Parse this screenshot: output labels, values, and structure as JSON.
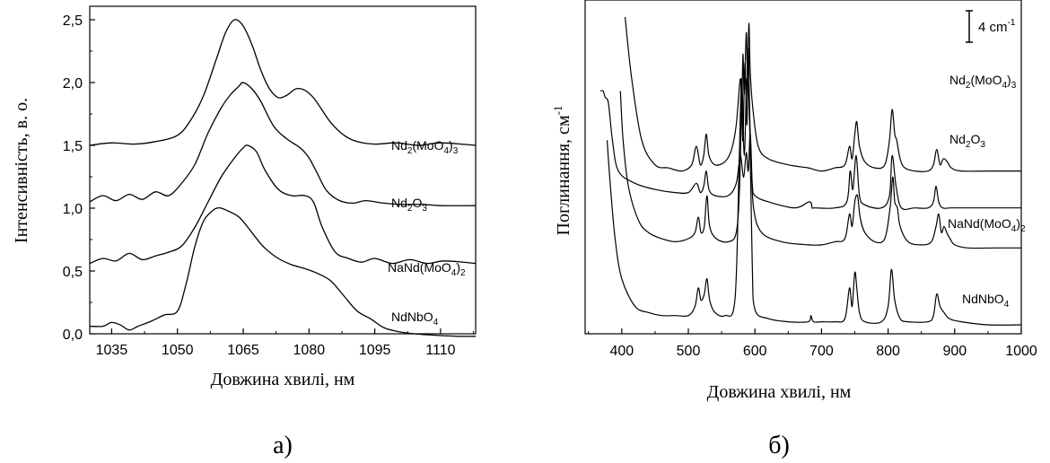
{
  "panels": [
    {
      "panel_label": "а)",
      "chart_data": {
        "type": "line",
        "xlabel": "Довжина хвилі, нм",
        "ylabel": "Інтенсивність, в. о.",
        "xlim": [
          1030,
          1118
        ],
        "ylim": [
          0,
          2.5
        ],
        "xticks": [
          1035,
          1050,
          1065,
          1080,
          1095,
          1110
        ],
        "xtick_labels": [
          "1035",
          "1050",
          "1065",
          "1080",
          "1095",
          "1110"
        ],
        "yticks": [
          0,
          0.5,
          1.0,
          1.5,
          2.0,
          2.5
        ],
        "ytick_labels": [
          "0,0",
          "0,5",
          "1,0",
          "1,5",
          "2,0",
          "2,5"
        ],
        "grid": false,
        "series": [
          {
            "name_parts": [
              {
                "t": "Nd"
              },
              {
                "t": "2",
                "sub": true
              },
              {
                "t": "(MoO"
              },
              {
                "t": "4",
                "sub": true
              },
              {
                "t": ")"
              },
              {
                "t": "3",
                "sub": true
              }
            ],
            "x": [
              1030,
              1035,
              1040,
              1045,
              1050,
              1053,
              1056,
              1059,
              1061,
              1063,
              1065,
              1067,
              1069,
              1071,
              1073,
              1075,
              1077,
              1079,
              1081,
              1083,
              1085,
              1088,
              1091,
              1095,
              1100,
              1105,
              1110,
              1118
            ],
            "y": [
              1.5,
              1.52,
              1.51,
              1.53,
              1.58,
              1.7,
              1.9,
              2.2,
              2.4,
              2.5,
              2.45,
              2.3,
              2.1,
              1.95,
              1.88,
              1.9,
              1.95,
              1.94,
              1.88,
              1.78,
              1.68,
              1.58,
              1.53,
              1.51,
              1.52,
              1.5,
              1.52,
              1.5
            ]
          },
          {
            "name_parts": [
              {
                "t": "Nd"
              },
              {
                "t": "2",
                "sub": true
              },
              {
                "t": "O"
              },
              {
                "t": "3",
                "sub": true
              }
            ],
            "x": [
              1030,
              1033,
              1036,
              1039,
              1042,
              1045,
              1048,
              1051,
              1054,
              1057,
              1060,
              1062,
              1064,
              1065,
              1067,
              1069,
              1072,
              1075,
              1078,
              1080,
              1082,
              1084,
              1087,
              1090,
              1093,
              1097,
              1101,
              1106,
              1110,
              1118
            ],
            "y": [
              1.05,
              1.1,
              1.06,
              1.11,
              1.07,
              1.13,
              1.1,
              1.2,
              1.35,
              1.6,
              1.8,
              1.9,
              1.97,
              2.0,
              1.95,
              1.85,
              1.65,
              1.55,
              1.48,
              1.4,
              1.27,
              1.14,
              1.06,
              1.04,
              1.06,
              1.04,
              1.03,
              1.03,
              1.02,
              1.02
            ]
          },
          {
            "name_parts": [
              {
                "t": "NaNd(MoO"
              },
              {
                "t": "4",
                "sub": true
              },
              {
                "t": ")"
              },
              {
                "t": "2",
                "sub": true
              }
            ],
            "x": [
              1030,
              1033,
              1036,
              1039,
              1042,
              1045,
              1048,
              1051,
              1054,
              1057,
              1060,
              1063,
              1065,
              1066,
              1068,
              1070,
              1073,
              1076,
              1079,
              1081,
              1083,
              1086,
              1089,
              1092,
              1095,
              1099,
              1103,
              1107,
              1111,
              1118
            ],
            "y": [
              0.56,
              0.6,
              0.58,
              0.64,
              0.59,
              0.62,
              0.65,
              0.7,
              0.85,
              1.05,
              1.25,
              1.4,
              1.48,
              1.5,
              1.45,
              1.3,
              1.15,
              1.1,
              1.1,
              1.05,
              0.85,
              0.65,
              0.6,
              0.57,
              0.6,
              0.56,
              0.59,
              0.56,
              0.58,
              0.56
            ]
          },
          {
            "name_parts": [
              {
                "t": "NdNbO"
              },
              {
                "t": "4",
                "sub": true
              }
            ],
            "x": [
              1030,
              1033,
              1035,
              1037,
              1039,
              1041,
              1044,
              1047,
              1050,
              1052,
              1054,
              1056,
              1058,
              1059,
              1060,
              1062,
              1064,
              1066,
              1068,
              1070,
              1073,
              1076,
              1079,
              1082,
              1085,
              1088,
              1091,
              1094,
              1097,
              1100,
              1104,
              1108,
              1114,
              1118
            ],
            "y": [
              0.06,
              0.06,
              0.09,
              0.07,
              0.03,
              0.06,
              0.1,
              0.15,
              0.18,
              0.4,
              0.7,
              0.9,
              0.98,
              1.0,
              1.0,
              0.97,
              0.93,
              0.85,
              0.76,
              0.68,
              0.6,
              0.55,
              0.52,
              0.48,
              0.42,
              0.3,
              0.18,
              0.12,
              0.05,
              0.02,
              0.0,
              -0.01,
              -0.02,
              -0.02
            ]
          }
        ]
      }
    },
    {
      "panel_label": "б)",
      "chart_data": {
        "type": "line",
        "xlabel": "Довжина хвилі, нм",
        "ylabel": "Поглинання, см",
        "ylabel_sup": "-1",
        "xlim": [
          345,
          1000
        ],
        "ylim": [
          0,
          105
        ],
        "xticks": [
          400,
          500,
          600,
          700,
          800,
          900,
          1000
        ],
        "xtick_labels": [
          "400",
          "500",
          "600",
          "700",
          "800",
          "900",
          "1000"
        ],
        "yticks": [],
        "grid": false,
        "scale_bar": {
          "label": "4 cm",
          "label_sup": "-1",
          "value": 8
        },
        "series": [
          {
            "name_parts": [
              {
                "t": "Nd"
              },
              {
                "t": "2",
                "sub": true
              },
              {
                "t": "(MoO"
              },
              {
                "t": "4",
                "sub": true
              },
              {
                "t": ")"
              },
              {
                "t": "3",
                "sub": true
              }
            ],
            "x": [
              405,
              415,
              430,
              450,
              470,
              490,
              505,
              512,
              518,
              523,
              527,
              531,
              540,
              555,
              565,
              572,
              578,
              580,
              582,
              584,
              587,
              589,
              591,
              593,
              597,
              605,
              620,
              650,
              680,
              700,
              720,
              735,
              742,
              746,
              750,
              753,
              757,
              765,
              780,
              795,
              802,
              806,
              810,
              813,
              818,
              825,
              840,
              860,
              868,
              873,
              878,
              883,
              889,
              895,
              910,
              950,
              1000
            ],
            "y": [
              100,
              80,
              60,
              52,
              51,
              50,
              52,
              58,
              52,
              55,
              62,
              55,
              52,
              53,
              57,
              65,
              80,
              70,
              88,
              75,
              95,
              80,
              98,
              82,
              70,
              58,
              54,
              52,
              51,
              50,
              51,
              52,
              58,
              54,
              62,
              66,
              58,
              53,
              51,
              52,
              60,
              70,
              62,
              60,
              54,
              51,
              50,
              50,
              52,
              57,
              52,
              54,
              53,
              51,
              50,
              50,
              50
            ]
          },
          {
            "name_parts": [
              {
                "t": "Nd"
              },
              {
                "t": "2",
                "sub": true
              },
              {
                "t": "O"
              },
              {
                "t": "3",
                "sub": true
              }
            ],
            "x": [
              368,
              372,
              375,
              380,
              386,
              395,
              420,
              450,
              480,
              500,
              512,
              518,
              523,
              527,
              531,
              540,
              560,
              572,
              578,
              583,
              587,
              590,
              593,
              596,
              600,
              620,
              660,
              682,
              686,
              690,
              720,
              738,
              743,
              747,
              752,
              757,
              765,
              790,
              802,
              806,
              812,
              820,
              840,
              860,
              868,
              872,
              876,
              882,
              895,
              930,
              1000
            ],
            "y": [
              76,
              76,
              74,
              72,
              60,
              50,
              46,
              44,
              43,
              43,
              46,
              43,
              45,
              50,
              44,
              42,
              42,
              46,
              55,
              48,
              56,
              50,
              62,
              46,
              42,
              40,
              38,
              40,
              38,
              38,
              38,
              40,
              50,
              44,
              55,
              42,
              39,
              38,
              42,
              55,
              45,
              38,
              38,
              38,
              40,
              45,
              40,
              38,
              38,
              38,
              38
            ]
          },
          {
            "name_parts": [
              {
                "t": "NaNd(MoO"
              },
              {
                "t": "4",
                "sub": true
              },
              {
                "t": ")"
              },
              {
                "t": "2",
                "sub": true
              }
            ],
            "x": [
              398,
              402,
              410,
              425,
              440,
              460,
              480,
              500,
              510,
              515,
              519,
              524,
              528,
              532,
              542,
              560,
              572,
              577,
              580,
              582,
              585,
              588,
              590,
              592,
              594,
              598,
              610,
              640,
              680,
              700,
              720,
              735,
              742,
              746,
              750,
              754,
              758,
              765,
              780,
              795,
              803,
              807,
              810,
              814,
              818,
              830,
              850,
              865,
              872,
              876,
              880,
              884,
              888,
              893,
              900,
              920,
              960,
              1000
            ],
            "y": [
              76,
              60,
              45,
              34,
              30,
              28,
              27,
              28,
              30,
              35,
              30,
              32,
              42,
              32,
              28,
              27,
              30,
              45,
              70,
              60,
              85,
              65,
              90,
              70,
              55,
              38,
              30,
              27,
              26,
              26,
              27,
              28,
              36,
              32,
              40,
              42,
              35,
              30,
              27,
              28,
              38,
              48,
              40,
              38,
              32,
              27,
              26,
              27,
              32,
              36,
              30,
              32,
              30,
              28,
              26,
              25,
              25,
              25
            ]
          },
          {
            "name_parts": [
              {
                "t": "NdNbO"
              },
              {
                "t": "4",
                "sub": true
              }
            ],
            "x": [
              378,
              383,
              390,
              400,
              420,
              440,
              460,
              480,
              500,
              510,
              515,
              519,
              524,
              528,
              532,
              540,
              555,
              570,
              576,
              580,
              584,
              588,
              592,
              596,
              600,
              620,
              650,
              680,
              684,
              688,
              700,
              720,
              735,
              742,
              746,
              750,
              753,
              757,
              765,
              790,
              800,
              805,
              810,
              818,
              830,
              860,
              868,
              873,
              878,
              884,
              892,
              910,
              950,
              1000
            ],
            "y": [
              60,
              45,
              28,
              15,
              6,
              4,
              3,
              3,
              3,
              6,
              12,
              8,
              10,
              15,
              8,
              4,
              3,
              8,
              50,
              80,
              55,
              80,
              65,
              20,
              5,
              2,
              1,
              1,
              3,
              1,
              1,
              1,
              2,
              12,
              6,
              17,
              12,
              4,
              1,
              1,
              6,
              18,
              8,
              2,
              1,
              1,
              3,
              10,
              6,
              4,
              2,
              1,
              0,
              0
            ]
          }
        ]
      }
    }
  ]
}
